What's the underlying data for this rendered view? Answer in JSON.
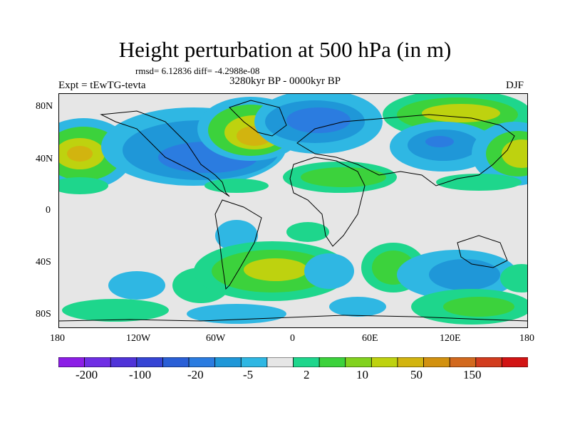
{
  "title": "Height perturbation at 500 hPa (in m)",
  "subtitle_stats": "rmsd= 6.12836 diff= -4.2988e-08",
  "left_label": "Expt = tEwTG-tevta",
  "center_label": "3280kyr BP - 0000kyr BP",
  "right_label": "DJF",
  "lat_labels": [
    "80N",
    "40N",
    "0",
    "40S",
    "80S"
  ],
  "lon_labels": [
    "180",
    "120W",
    "60W",
    "0",
    "60E",
    "120E",
    "180"
  ],
  "colorbar": {
    "colors": [
      "#8c1ee6",
      "#6f2ee4",
      "#5033d8",
      "#3645d5",
      "#2a5fd6",
      "#2b7ce0",
      "#1f97d8",
      "#2fb7e3",
      "#e6e6e6",
      "#1ed68c",
      "#3cd23c",
      "#82d21e",
      "#bed20f",
      "#d2b40f",
      "#d2910f",
      "#d2691e",
      "#d23c1e",
      "#d21414"
    ],
    "labels": [
      "-200",
      "-100",
      "-20",
      "-5",
      "2",
      "10",
      "50",
      "150"
    ]
  },
  "color_hex": {
    "neutral": "#e6e6e6",
    "cyan": "#2fb7e3",
    "light_blue": "#1f97d8",
    "blue": "#2b7ce0",
    "teal_green": "#1ed68c",
    "green": "#3cd23c",
    "yellow_green": "#bed20f",
    "yellow": "#d2b40f"
  }
}
